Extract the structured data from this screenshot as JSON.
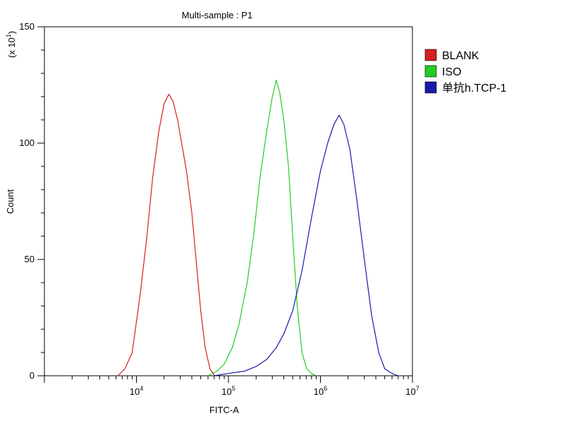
{
  "chart_data": {
    "type": "line",
    "title": "Multi-sample : P1",
    "xlabel": "FITC-A",
    "ylabel": "Count",
    "y_multiplier": {
      "prefix": "(x 10",
      "exponent": "1",
      "suffix": ")"
    },
    "xscale": "log",
    "xlim": [
      1000,
      10000000
    ],
    "ylim": [
      0,
      150
    ],
    "x_ticks": [
      {
        "value": 10000,
        "base": "10",
        "exp": "4"
      },
      {
        "value": 100000,
        "base": "10",
        "exp": "5"
      },
      {
        "value": 1000000,
        "base": "10",
        "exp": "6"
      },
      {
        "value": 10000000,
        "base": "10",
        "exp": "7"
      }
    ],
    "y_ticks": [
      {
        "value": 0,
        "label": "0"
      },
      {
        "value": 50,
        "label": "50"
      },
      {
        "value": 100,
        "label": "100"
      },
      {
        "value": 150,
        "label": "150"
      }
    ],
    "grid": false,
    "legend_position": "right",
    "series": [
      {
        "name": "BLANK",
        "color": "#d42020",
        "x": [
          6300,
          7500,
          9000,
          11000,
          13000,
          15000,
          17500,
          20000,
          22500,
          25000,
          28000,
          31000,
          35000,
          40000,
          45000,
          50000,
          56000,
          63000,
          71000
        ],
        "y": [
          0,
          3,
          10,
          35,
          60,
          85,
          105,
          117,
          121,
          118,
          110,
          100,
          88,
          70,
          48,
          28,
          12,
          3,
          0
        ]
      },
      {
        "name": "ISO",
        "color": "#22cc22",
        "x": [
          60000,
          75000,
          90000,
          110000,
          130000,
          160000,
          190000,
          220000,
          260000,
          300000,
          330000,
          360000,
          400000,
          450000,
          500000,
          560000,
          630000,
          710000,
          800000,
          900000
        ],
        "y": [
          0,
          2,
          5,
          12,
          22,
          40,
          62,
          85,
          105,
          120,
          127,
          122,
          110,
          90,
          60,
          30,
          10,
          3,
          1,
          0
        ]
      },
      {
        "name": "单抗h.TCP-1",
        "color": "#1a1aaa",
        "x": [
          70000,
          100000,
          150000,
          200000,
          260000,
          330000,
          400000,
          500000,
          630000,
          800000,
          1000000,
          1200000,
          1400000,
          1600000,
          1800000,
          2100000,
          2500000,
          3000000,
          3600000,
          4300000,
          5000000,
          6000000,
          7000000
        ],
        "y": [
          0,
          1,
          2,
          4,
          7,
          12,
          18,
          28,
          45,
          68,
          88,
          100,
          108,
          112,
          108,
          97,
          75,
          50,
          26,
          10,
          3,
          1,
          0
        ]
      }
    ]
  }
}
